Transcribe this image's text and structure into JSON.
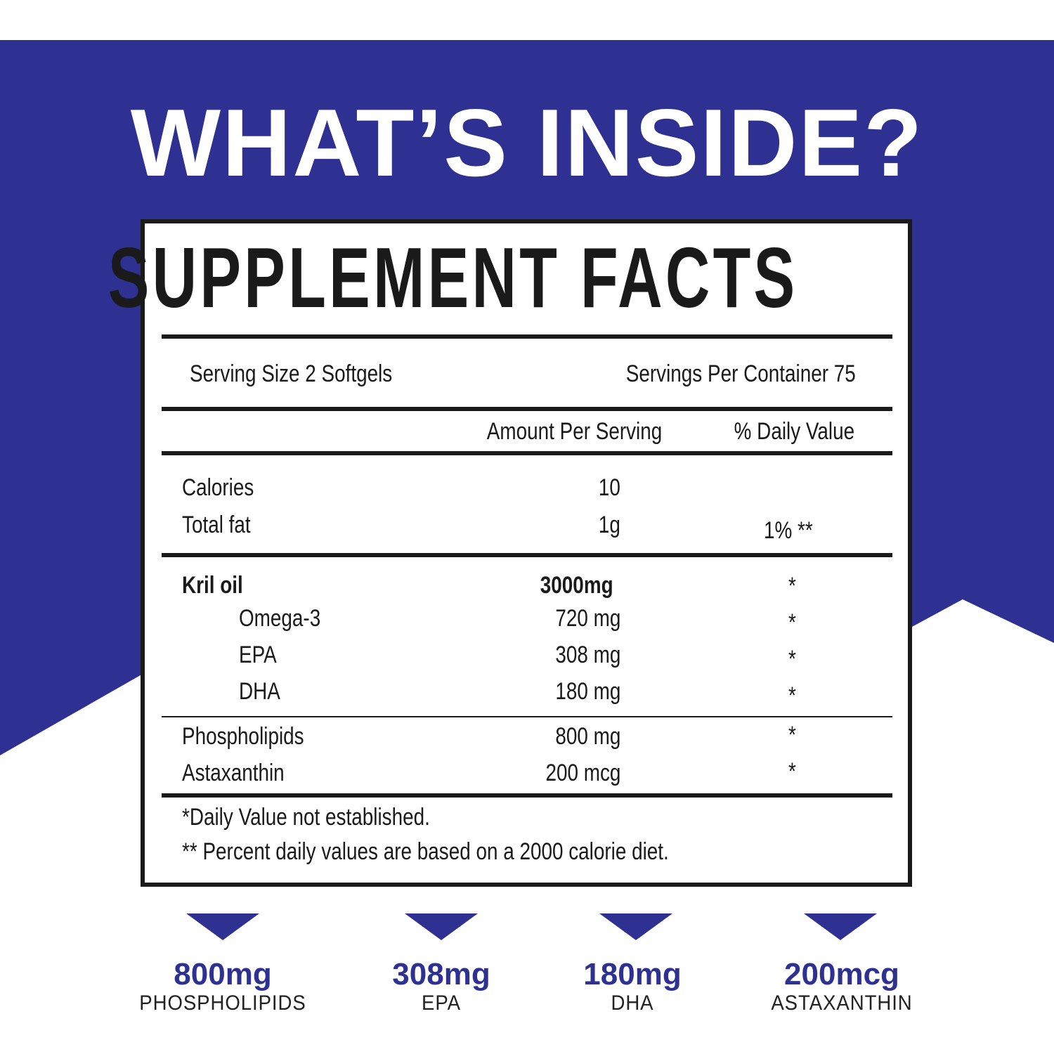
{
  "colors": {
    "brand_blue": "#2e3192",
    "text": "#1a1a1a"
  },
  "header": {
    "title": "WHAT’S INSIDE?"
  },
  "label": {
    "title": "SUPPLEMENT FACTS",
    "serving_size": "Serving Size 2 Softgels",
    "servings_per_container": "Servings Per Container 75",
    "col_amount": "Amount Per Serving",
    "col_dv": "% Daily Value",
    "rows": [
      {
        "name": "Calories",
        "amount": "10",
        "dv": ""
      },
      {
        "name": "Total fat",
        "amount": "1g",
        "dv": "1% **"
      },
      {
        "name": "Kril oil",
        "amount": "3000mg",
        "dv": "*"
      },
      {
        "name": "Omega-3",
        "amount": "720 mg",
        "dv": "*"
      },
      {
        "name": "EPA",
        "amount": "308 mg",
        "dv": "*"
      },
      {
        "name": "DHA",
        "amount": "180 mg",
        "dv": "*"
      },
      {
        "name": "Phospholipids",
        "amount": "800 mg",
        "dv": "*"
      },
      {
        "name": "Astaxanthin",
        "amount": "200 mcg",
        "dv": "*"
      }
    ],
    "footnotes": [
      "*Daily Value not established.",
      "** Percent daily values are based on a 2000 calorie diet."
    ]
  },
  "highlights": [
    {
      "value": "800mg",
      "label": "PHOSPHOLIPIDS",
      "icon": "triangle-down-icon"
    },
    {
      "value": "308mg",
      "label": "EPA",
      "icon": "triangle-down-icon"
    },
    {
      "value": "180mg",
      "label": "DHA",
      "icon": "triangle-down-icon"
    },
    {
      "value": "200mcg",
      "label": "ASTAXANTHIN",
      "icon": "triangle-down-icon"
    }
  ]
}
